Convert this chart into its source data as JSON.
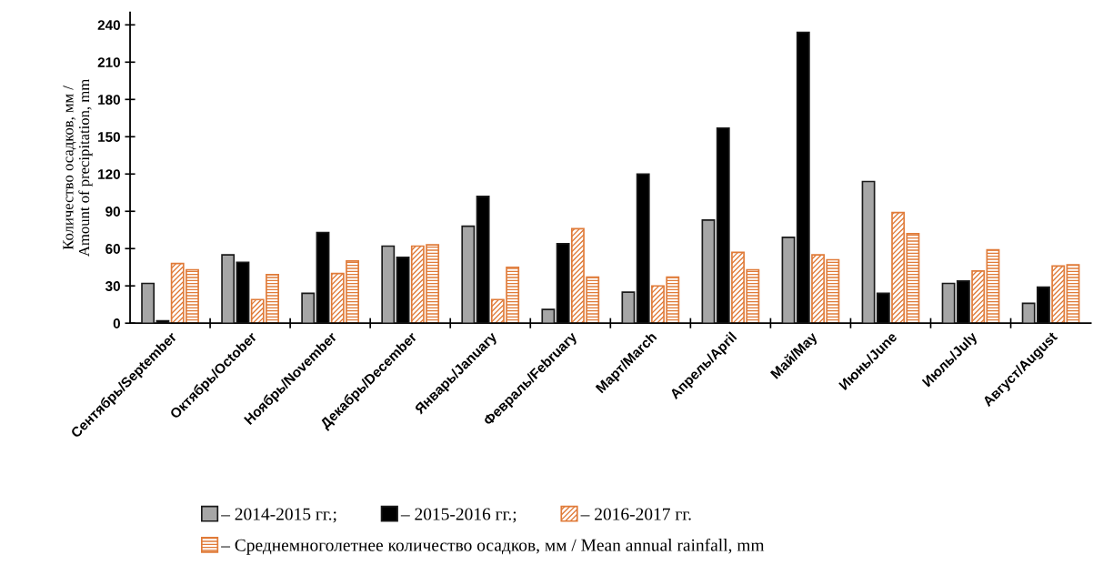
{
  "chart_data": {
    "type": "bar",
    "ylabel": "Количество осадков, мм /\nAmount of precipitation, mm",
    "categories": [
      "Сентябрь/September",
      "Октябрь/October",
      "Ноябрь/November",
      "Декабрь/December",
      "Январь/January",
      "Февраль/February",
      "Март/March",
      "Апрель/April",
      "Май/May",
      "Июнь/June",
      "Июль/July",
      "Август/August"
    ],
    "series": [
      {
        "name": "– 2014-2015 гг.;",
        "color": "#a6a6a6",
        "values": [
          32,
          55,
          24,
          62,
          78,
          11,
          25,
          83,
          69,
          114,
          32,
          16
        ]
      },
      {
        "name": "– 2015-2016 гг.;",
        "color": "#000000",
        "values": [
          2,
          49,
          73,
          53,
          102,
          64,
          120,
          157,
          234,
          24,
          34,
          29
        ]
      },
      {
        "name": "– 2016-2017 гг.",
        "color": "#e07b39",
        "values": [
          48,
          19,
          40,
          62,
          19,
          76,
          30,
          57,
          55,
          89,
          42,
          46
        ]
      },
      {
        "name": "– Среднемноголетнее количество осадков, мм / Mean annual rainfall, mm",
        "color": "#e07b39",
        "values": [
          43,
          39,
          50,
          63,
          45,
          37,
          37,
          43,
          51,
          72,
          59,
          47
        ]
      }
    ],
    "ylim": [
      0,
      250
    ],
    "yticks": [
      0,
      30,
      60,
      90,
      120,
      150,
      180,
      210,
      240
    ],
    "grid": false,
    "legend": "bottom"
  }
}
